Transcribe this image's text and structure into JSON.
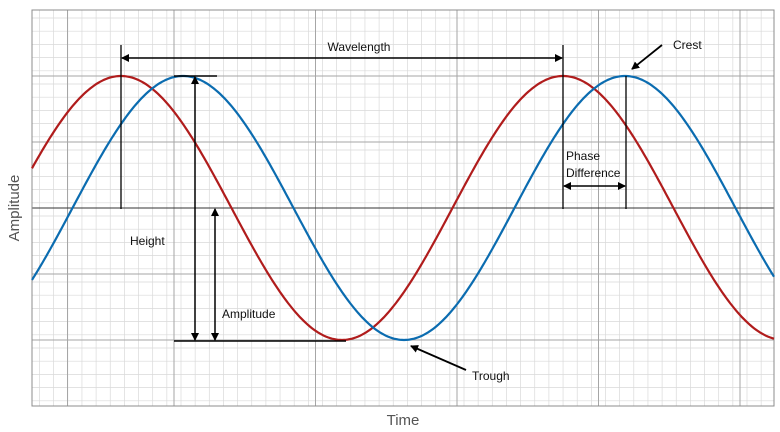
{
  "axes": {
    "xlabel": "Time",
    "ylabel": "Amplitude"
  },
  "annotations": {
    "wavelength": "Wavelength",
    "crest": "Crest",
    "trough": "Trough",
    "height": "Height",
    "amplitude": "Amplitude",
    "phase_line1": "Phase",
    "phase_line2": "Difference"
  },
  "colors": {
    "wave_red": "#b01c1c",
    "wave_blue": "#0b6cb0",
    "grid_minor": "#d9d9d9",
    "grid_major": "#a6a6a6",
    "annotation": "#000000"
  }
}
